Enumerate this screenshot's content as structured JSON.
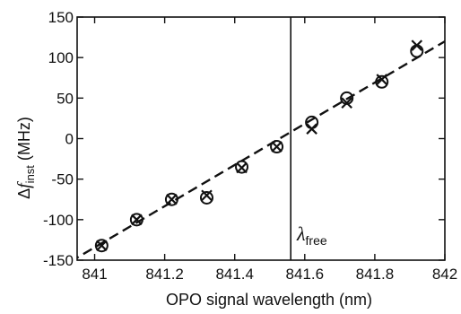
{
  "chart_data": {
    "type": "scatter",
    "title": "",
    "xlabel": "OPO signal wavelength (nm)",
    "ylabel": {
      "prefix": "Δ",
      "symbol": "f",
      "subscript": "inst",
      "unit": " (MHz)"
    },
    "xlim": [
      840.95,
      842
    ],
    "ylim": [
      -150,
      150
    ],
    "x_ticks": [
      841,
      841.2,
      841.4,
      841.6,
      841.8,
      842
    ],
    "x_tick_labels": [
      "841",
      "841.2",
      "841.4",
      "841.6",
      "841.8",
      "842"
    ],
    "y_ticks": [
      -150,
      -100,
      -50,
      0,
      50,
      100,
      150
    ],
    "y_tick_labels": [
      "-150",
      "-100",
      "-50",
      "0",
      "50",
      "100",
      "150"
    ],
    "grid": false,
    "series": [
      {
        "marker": "circle",
        "x": [
          841.02,
          841.12,
          841.22,
          841.32,
          841.42,
          841.52,
          841.62,
          841.72,
          841.82,
          841.92
        ],
        "y": [
          -132,
          -100,
          -75,
          -73,
          -35,
          -10,
          20,
          50,
          70,
          108
        ]
      },
      {
        "marker": "cross",
        "x": [
          841.02,
          841.12,
          841.22,
          841.32,
          841.42,
          841.52,
          841.62,
          841.72,
          841.82,
          841.92
        ],
        "y": [
          -132,
          -100,
          -75,
          -70,
          -36,
          -10,
          12,
          44,
          73,
          115
        ]
      }
    ],
    "fit_line": {
      "style": "dashed",
      "x": [
        840.93,
        842.0
      ],
      "y": [
        -152,
        120
      ]
    },
    "vline": {
      "x": 841.56,
      "label_symbol": "λ",
      "label_sub": "free"
    }
  }
}
